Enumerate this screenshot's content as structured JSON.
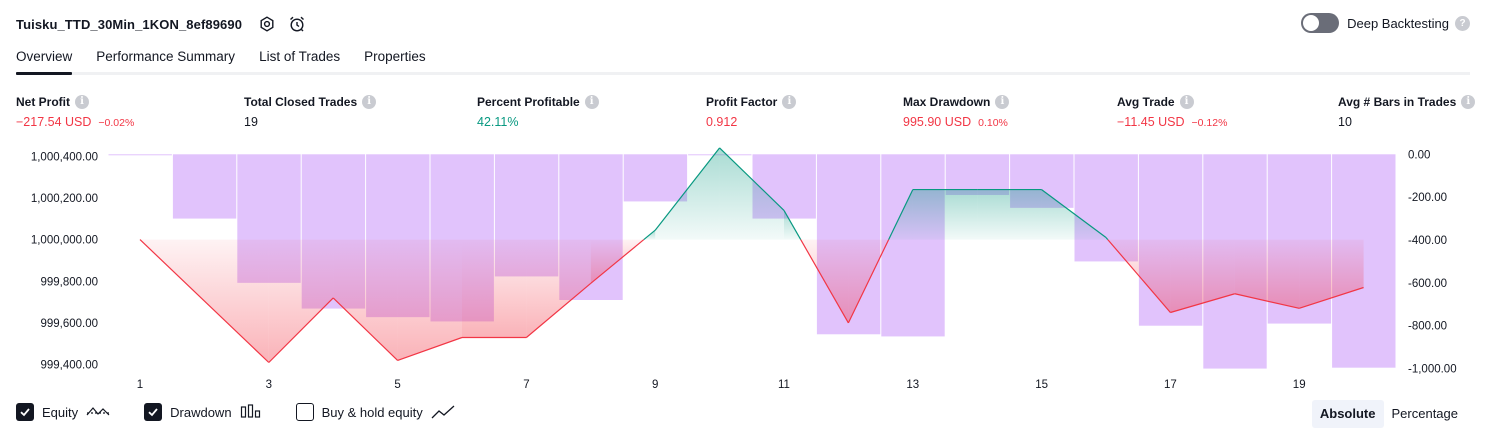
{
  "header": {
    "strategy_name": "Tuisku_TTD_30Min_1KON_8ef89690",
    "settings_icon": "gear-icon",
    "alert_icon": "alarm-clock-icon",
    "deep_backtesting_label": "Deep Backtesting",
    "deep_backtesting_on": false
  },
  "tabs": [
    {
      "label": "Overview",
      "active": true
    },
    {
      "label": "Performance Summary",
      "active": false
    },
    {
      "label": "List of Trades",
      "active": false
    },
    {
      "label": "Properties",
      "active": false
    }
  ],
  "metrics": {
    "net_profit": {
      "label": "Net Profit",
      "value": "−217.54 USD",
      "sub": "−0.02%"
    },
    "total_closed_trades": {
      "label": "Total Closed Trades",
      "value": "19"
    },
    "percent_profitable": {
      "label": "Percent Profitable",
      "value": "42.11%"
    },
    "profit_factor": {
      "label": "Profit Factor",
      "value": "0.912"
    },
    "max_drawdown": {
      "label": "Max Drawdown",
      "value": "995.90 USD",
      "sub": "0.10%"
    },
    "avg_trade": {
      "label": "Avg Trade",
      "value": "−11.45 USD",
      "sub": "−0.12%"
    },
    "avg_bars": {
      "label": "Avg # Bars in Trades",
      "value": "10"
    }
  },
  "chart_data": {
    "type": "line",
    "left_axis": {
      "min": 999350,
      "max": 1000430,
      "ticks": [
        1000400,
        1000200,
        1000000,
        999800,
        999600,
        999400
      ],
      "tick_labels": [
        "1,000,400.00",
        "1,000,200.00",
        "1,000,000.00",
        "999,800.00",
        "999,600.00",
        "999,400.00"
      ]
    },
    "right_axis": {
      "min": -1030,
      "max": 20,
      "ticks": [
        0,
        -200,
        -400,
        -600,
        -800,
        -1000
      ],
      "tick_labels": [
        "0.00",
        "-200.00",
        "-400.00",
        "-600.00",
        "-800.00",
        "-1,000.00"
      ]
    },
    "x_tick_labels": [
      "1",
      "3",
      "5",
      "7",
      "9",
      "11",
      "13",
      "15",
      "17",
      "19"
    ],
    "x_tick_values": [
      1,
      3,
      5,
      7,
      9,
      11,
      13,
      15,
      17,
      19
    ],
    "baseline": 1000000,
    "equity": {
      "name": "Equity",
      "x": [
        1,
        3,
        4,
        5,
        6,
        7,
        8,
        9,
        10,
        11,
        12,
        13,
        14,
        15,
        16,
        17,
        18,
        19,
        20
      ],
      "values": [
        1000000,
        999410,
        999720,
        999420,
        999530,
        999530,
        999790,
        1000045,
        1000440,
        1000140,
        999600,
        1000240,
        1000240,
        1000240,
        1000010,
        999650,
        999740,
        999670,
        999770
      ]
    },
    "drawdown": {
      "name": "Drawdown",
      "bar_values": [
        0,
        -300,
        -600,
        -720,
        -760,
        -780,
        -570,
        -680,
        -220,
        0,
        -300,
        -840,
        -850,
        -190,
        -250,
        -500,
        -800,
        -1000,
        -790,
        -995.9
      ]
    },
    "colors": {
      "profit": "#089981",
      "loss": "#f23645",
      "drawdown_bar": "#e1c3fc",
      "axis_text": "#131722"
    }
  },
  "legend": [
    {
      "label": "Equity",
      "checked": true,
      "icon": "equity-line-icon"
    },
    {
      "label": "Drawdown",
      "checked": true,
      "icon": "drawdown-bars-icon"
    },
    {
      "label": "Buy & hold equity",
      "checked": false,
      "icon": "buy-hold-line-icon"
    }
  ],
  "mode": {
    "absolute": "Absolute",
    "percentage": "Percentage",
    "selected": "Absolute"
  }
}
